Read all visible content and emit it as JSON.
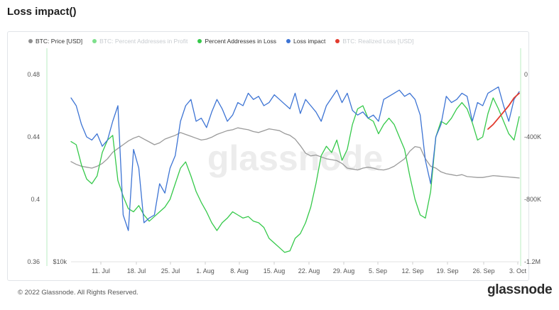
{
  "page": {
    "title": "Loss impact()",
    "copyright": "© 2022 Glassnode. All Rights Reserved.",
    "logo": "glassnode",
    "watermark": "glassnode"
  },
  "legend": [
    {
      "label": "BTC: Price [USD]",
      "color": "#8f8f8f",
      "hidden": false
    },
    {
      "label": "BTC: Percent Addresses in Profit",
      "color": "#7ee08c",
      "hidden": true
    },
    {
      "label": "Percent Addresses in Loss",
      "color": "#35c94a",
      "hidden": false
    },
    {
      "label": "Loss impact",
      "color": "#3d74d4",
      "hidden": false
    },
    {
      "label": "BTC: Realized Loss [USD]",
      "color": "#e23b2e",
      "hidden": true
    }
  ],
  "chart_data": {
    "type": "line",
    "x_ticks": [
      "11. Jul",
      "18. Jul",
      "25. Jul",
      "1. Aug",
      "8. Aug",
      "15. Aug",
      "22. Aug",
      "29. Aug",
      "5. Sep",
      "12. Sep",
      "19. Sep",
      "26. Sep",
      "3. Oct"
    ],
    "y_left_ticks": [
      "0.48",
      "0.44",
      "0.4",
      "0.36"
    ],
    "y_left_range": [
      0.36,
      0.48
    ],
    "y_right_ticks": [
      "0",
      "-400K",
      "-800K",
      "-1.2M"
    ],
    "y_right_range": [
      -1200000,
      0
    ],
    "price_axis_label": "$10k",
    "series": [
      {
        "name": "Percent Addresses in Loss",
        "axis": "left",
        "color": "#35c94a",
        "values": [
          0.437,
          0.435,
          0.422,
          0.413,
          0.41,
          0.415,
          0.43,
          0.438,
          0.441,
          0.412,
          0.402,
          0.394,
          0.392,
          0.396,
          0.39,
          0.386,
          0.389,
          0.392,
          0.395,
          0.4,
          0.41,
          0.42,
          0.424,
          0.415,
          0.405,
          0.398,
          0.392,
          0.385,
          0.38,
          0.385,
          0.388,
          0.392,
          0.39,
          0.388,
          0.389,
          0.386,
          0.385,
          0.382,
          0.375,
          0.372,
          0.369,
          0.366,
          0.367,
          0.375,
          0.378,
          0.385,
          0.395,
          0.41,
          0.428,
          0.434,
          0.43,
          0.438,
          0.425,
          0.432,
          0.448,
          0.458,
          0.46,
          0.452,
          0.45,
          0.442,
          0.448,
          0.452,
          0.448,
          0.44,
          0.432,
          0.415,
          0.4,
          0.39,
          0.388,
          0.405,
          0.44,
          0.45,
          0.448,
          0.452,
          0.458,
          0.462,
          0.458,
          0.449,
          0.438,
          0.44,
          0.455,
          0.465,
          0.458,
          0.45,
          0.442,
          0.438,
          0.453
        ]
      },
      {
        "name": "Loss impact",
        "axis": "right",
        "color": "#3d74d4",
        "values": [
          -150000,
          -200000,
          -320000,
          -400000,
          -420000,
          -380000,
          -460000,
          -420000,
          -300000,
          -200000,
          -900000,
          -1000000,
          -480000,
          -600000,
          -950000,
          -920000,
          -900000,
          -700000,
          -760000,
          -600000,
          -520000,
          -300000,
          -200000,
          -160000,
          -300000,
          -280000,
          -340000,
          -240000,
          -160000,
          -220000,
          -300000,
          -260000,
          -180000,
          -200000,
          -120000,
          -160000,
          -140000,
          -200000,
          -180000,
          -130000,
          -160000,
          -190000,
          -220000,
          -120000,
          -250000,
          -160000,
          -200000,
          -240000,
          -300000,
          -200000,
          -150000,
          -100000,
          -180000,
          -120000,
          -230000,
          -260000,
          -240000,
          -280000,
          -260000,
          -300000,
          -160000,
          -140000,
          -120000,
          -100000,
          -140000,
          -120000,
          -160000,
          -260000,
          -550000,
          -700000,
          -400000,
          -320000,
          -140000,
          -180000,
          -160000,
          -120000,
          -140000,
          -300000,
          -180000,
          -200000,
          -120000,
          -100000,
          -80000,
          -200000,
          -300000,
          -160000,
          -110000
        ]
      },
      {
        "name": "BTC: Price [USD]",
        "axis": "price",
        "color": "#9a9a9a",
        "values": [
          20700,
          20400,
          20200,
          20100,
          20000,
          20200,
          20500,
          21000,
          21700,
          22100,
          22500,
          22900,
          23200,
          23400,
          23100,
          22800,
          22500,
          22700,
          23100,
          23300,
          23500,
          23800,
          23600,
          23400,
          23200,
          23000,
          23100,
          23300,
          23600,
          23800,
          24000,
          24100,
          24300,
          24200,
          24100,
          23900,
          23800,
          24000,
          24200,
          24100,
          24000,
          23700,
          23500,
          23100,
          22400,
          21600,
          21300,
          21400,
          21200,
          21000,
          20900,
          20800,
          20500,
          20000,
          19900,
          19800,
          20000,
          20100,
          20000,
          19850,
          19800,
          19950,
          20200,
          20600,
          21000,
          21800,
          22300,
          22200,
          21000,
          20200,
          20000,
          19600,
          19400,
          19300,
          19200,
          19300,
          19100,
          19050,
          19000,
          19000,
          19100,
          19200,
          19150,
          19100,
          19050,
          19000,
          18950
        ]
      },
      {
        "name": "BTC: Realized Loss [USD]",
        "axis": "right",
        "color": "#e23b2e",
        "values": [
          null,
          null,
          null,
          null,
          null,
          null,
          null,
          null,
          null,
          null,
          null,
          null,
          null,
          null,
          null,
          null,
          null,
          null,
          null,
          null,
          null,
          null,
          null,
          null,
          null,
          null,
          null,
          null,
          null,
          null,
          null,
          null,
          null,
          null,
          null,
          null,
          null,
          null,
          null,
          null,
          null,
          null,
          null,
          null,
          null,
          null,
          null,
          null,
          null,
          null,
          null,
          null,
          null,
          null,
          null,
          null,
          null,
          null,
          null,
          null,
          null,
          null,
          null,
          null,
          null,
          null,
          null,
          null,
          null,
          null,
          null,
          null,
          null,
          null,
          null,
          null,
          null,
          null,
          null,
          null,
          -350000,
          -320000,
          -280000,
          -240000,
          -200000,
          -150000,
          -120000
        ]
      }
    ],
    "price_range": [
      10000,
      30000
    ],
    "grid": false,
    "legend_position": "top-left"
  }
}
